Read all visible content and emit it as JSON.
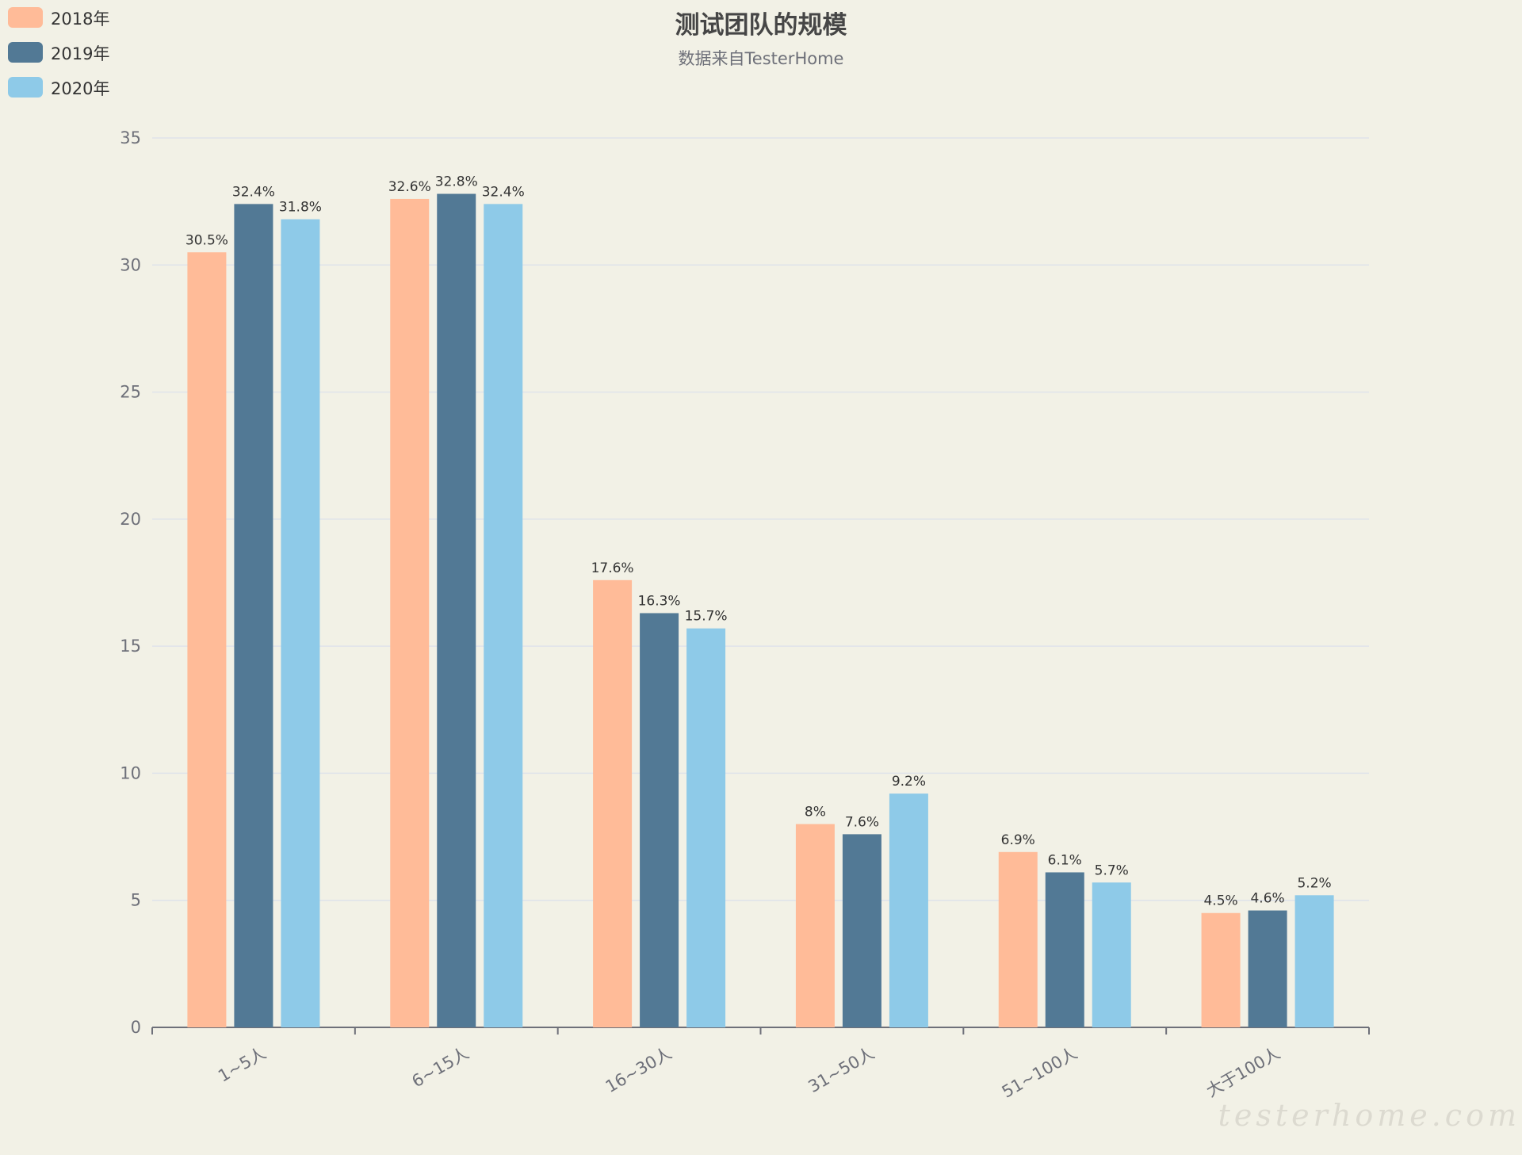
{
  "colors": {
    "2018": "#ffbb98",
    "2019": "#527995",
    "2020": "#8ecae8"
  },
  "watermark": "testerhome.com",
  "chart_data": {
    "type": "bar",
    "title": "测试团队的规模",
    "subtitle": "数据来自TesterHome",
    "categories": [
      "1~5人",
      "6~15人",
      "16~30人",
      "31~50人",
      "51~100人",
      "大于100人"
    ],
    "series": [
      {
        "name": "2018年",
        "color": "#ffbb98",
        "values": [
          30.5,
          32.6,
          17.6,
          8,
          6.9,
          4.5
        ]
      },
      {
        "name": "2019年",
        "color": "#527995",
        "values": [
          32.4,
          32.8,
          16.3,
          7.6,
          6.1,
          4.6
        ]
      },
      {
        "name": "2020年",
        "color": "#8ecae8",
        "values": [
          31.8,
          32.4,
          15.7,
          9.2,
          5.7,
          5.2
        ]
      }
    ],
    "data_label_suffix": "%",
    "ylim": [
      0,
      35
    ],
    "yticks": [
      0,
      5,
      10,
      15,
      20,
      25,
      30,
      35
    ],
    "grid": true,
    "legend_position": "top-left",
    "xlabel": "",
    "ylabel": ""
  }
}
